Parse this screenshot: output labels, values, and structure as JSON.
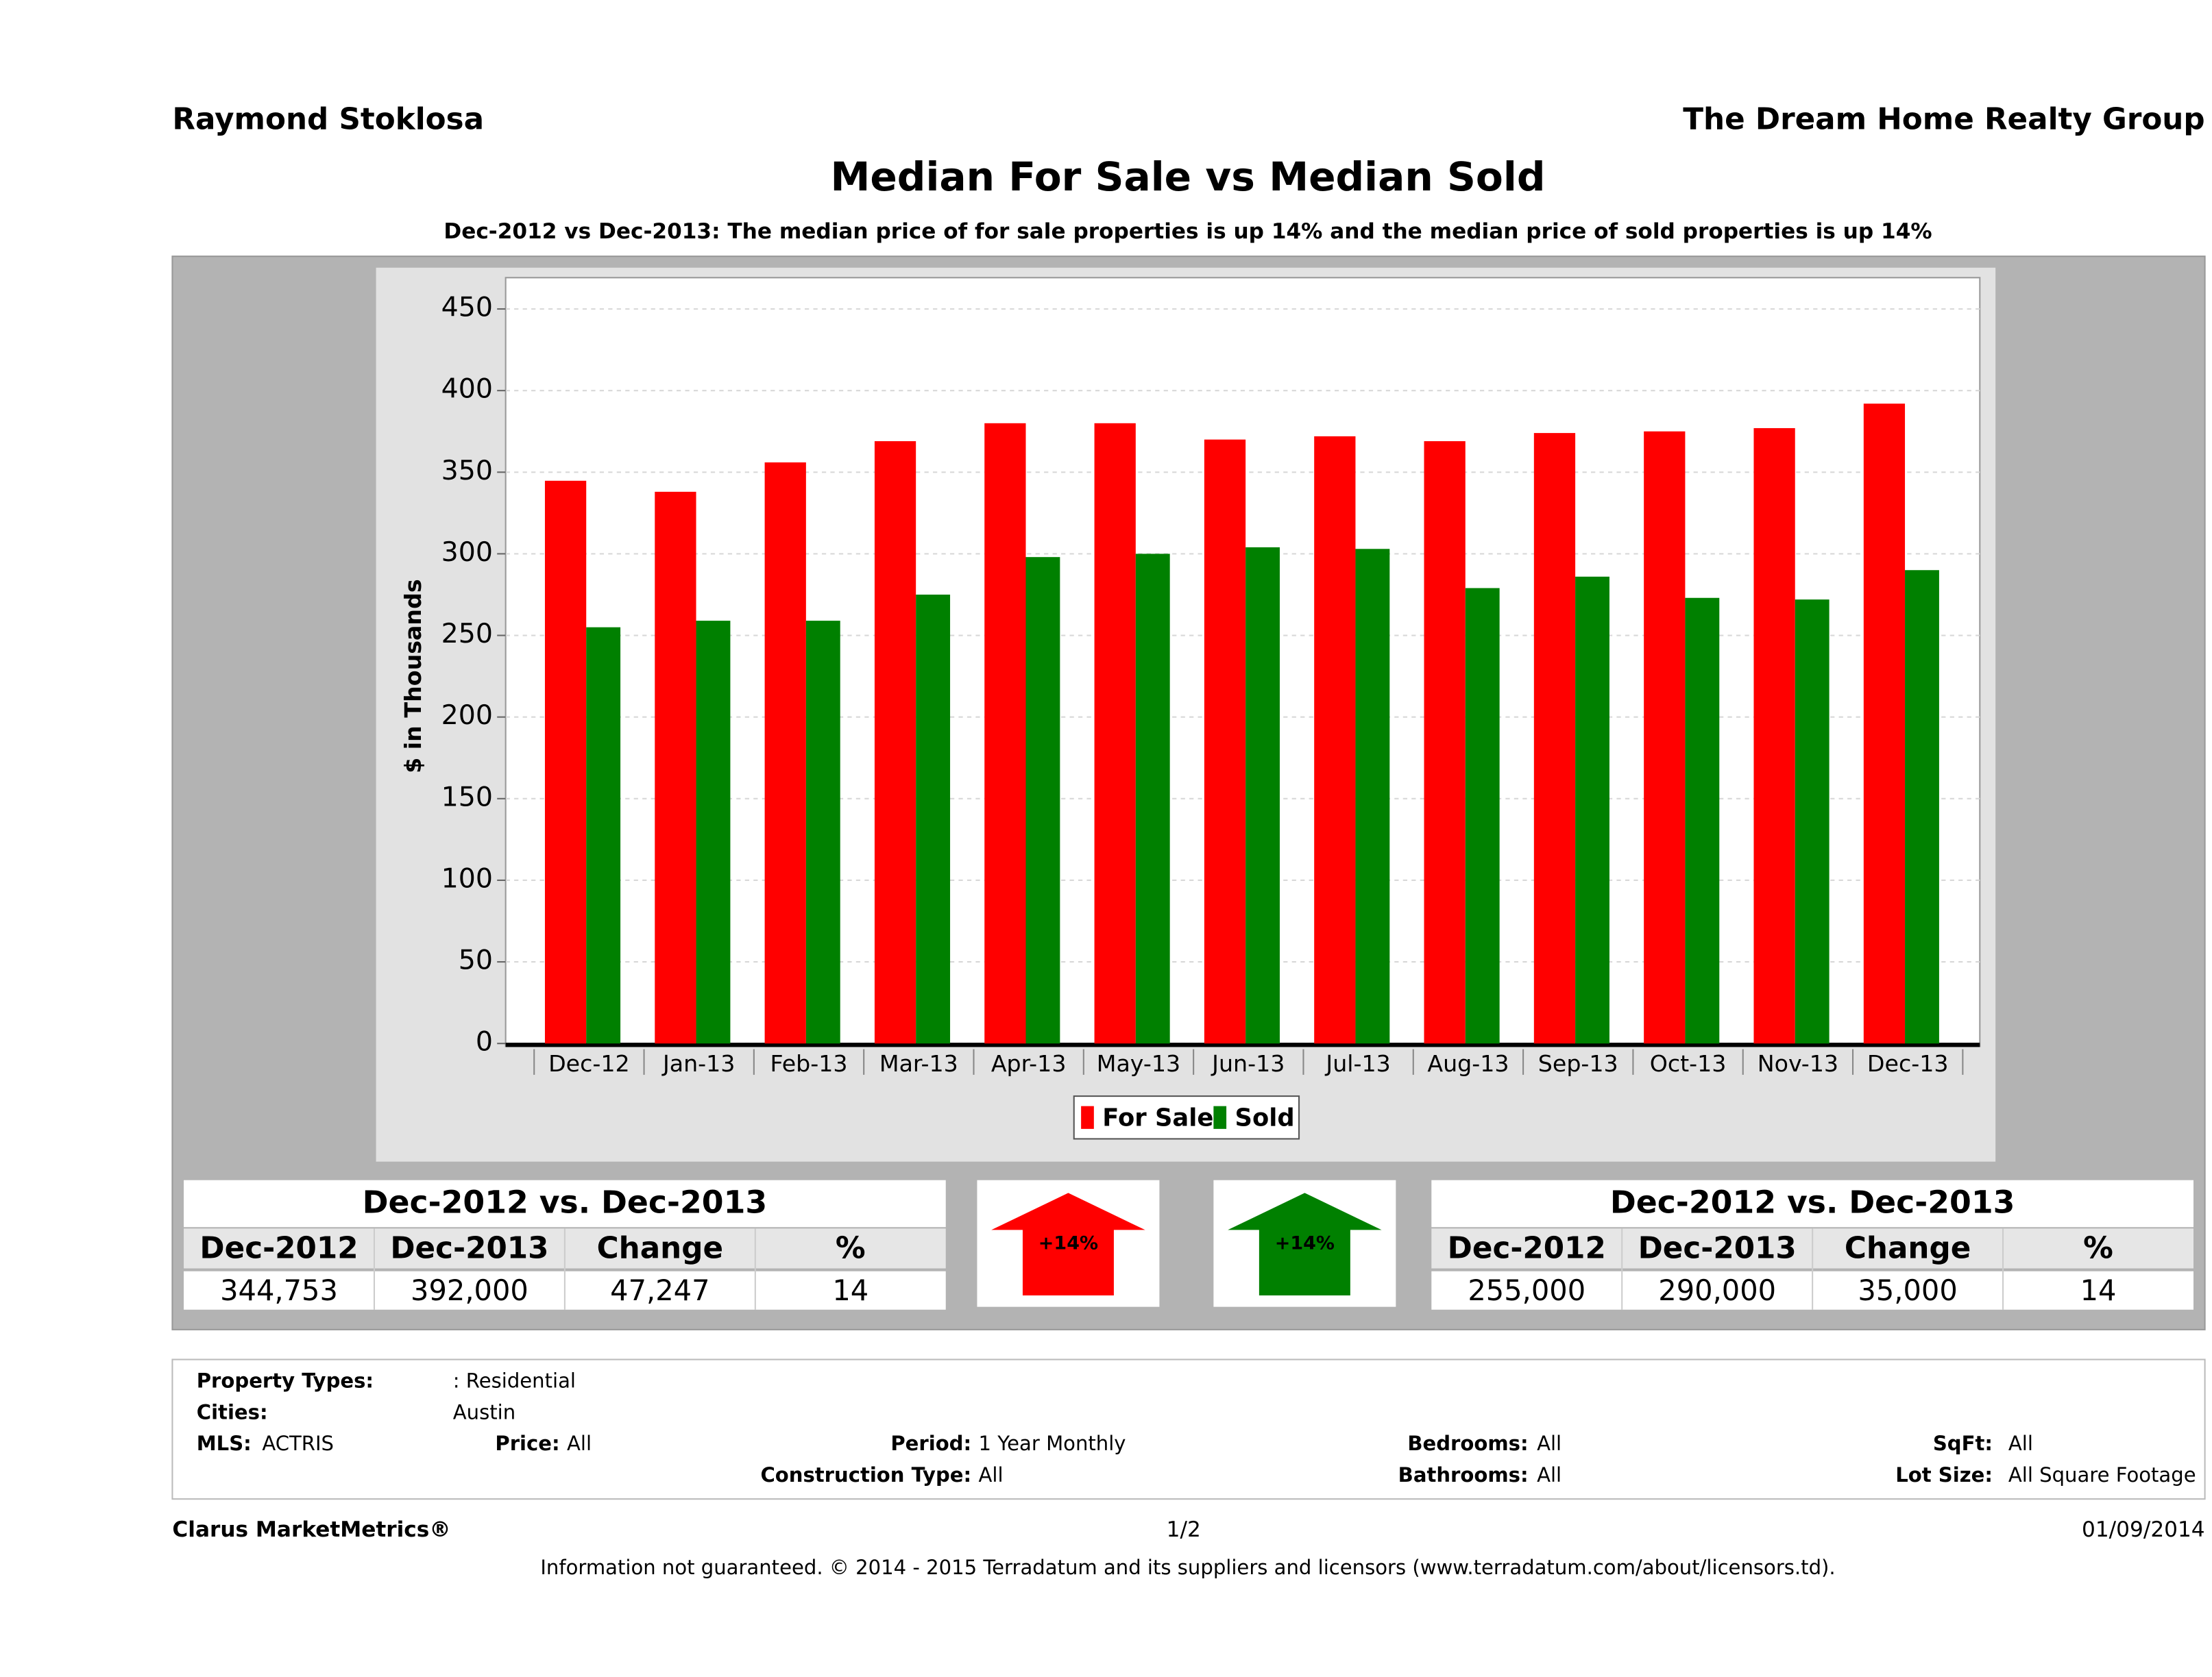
{
  "header": {
    "agent": "Raymond Stoklosa",
    "company": "The Dream Home Realty Group"
  },
  "chart_data": {
    "type": "bar",
    "title": "Median For Sale vs Median Sold",
    "subtitle": "Dec-2012 vs Dec-2013: The median price of for sale properties is up 14% and the median price of sold properties is up 14%",
    "y_label": "$ in Thousands",
    "categories": [
      "Dec-12",
      "Jan-13",
      "Feb-13",
      "Mar-13",
      "Apr-13",
      "May-13",
      "Jun-13",
      "Jul-13",
      "Aug-13",
      "Sep-13",
      "Oct-13",
      "Nov-13",
      "Dec-13"
    ],
    "series": [
      {
        "name": "For Sale",
        "color": "#ff0000",
        "values": [
          344.753,
          338,
          356,
          369,
          380,
          380,
          370,
          372,
          369,
          374,
          375,
          377,
          392
        ]
      },
      {
        "name": "Sold",
        "color": "#008000",
        "values": [
          255,
          259,
          259,
          275,
          298,
          300,
          304,
          303,
          279,
          286,
          273,
          272,
          290
        ]
      }
    ],
    "ylim": [
      0,
      450
    ],
    "yticks": [
      0,
      50,
      100,
      150,
      200,
      250,
      300,
      350,
      400,
      450
    ],
    "grid": true
  },
  "summary": [
    {
      "title": "Dec-2012 vs. Dec-2013",
      "headers": [
        "Dec-2012",
        "Dec-2013",
        "Change",
        "%"
      ],
      "row": [
        "344,753",
        "392,000",
        "47,247",
        "14"
      ],
      "arrow": "+14%",
      "color": "#ff0000"
    },
    {
      "title": "Dec-2012 vs. Dec-2013",
      "headers": [
        "Dec-2012",
        "Dec-2013",
        "Change",
        "%"
      ],
      "row": [
        "255,000",
        "290,000",
        "35,000",
        "14"
      ],
      "arrow": "+14%",
      "color": "#008000"
    }
  ],
  "criteria": [
    {
      "label": "Property Types:",
      "value": ": Residential"
    },
    {
      "label": "Cities:",
      "value": "Austin"
    },
    {
      "label": "MLS:",
      "value": "ACTRIS"
    },
    {
      "label": "Price:",
      "value": "All"
    },
    {
      "label": "Period:",
      "value": "1 Year Monthly"
    },
    {
      "label": "Bedrooms:",
      "value": "All"
    },
    {
      "label": "SqFt:",
      "value": "All"
    },
    {
      "label": "Construction Type:",
      "value": "All"
    },
    {
      "label": "Bathrooms:",
      "value": "All"
    },
    {
      "label": "Lot Size:",
      "value": "All Square Footage"
    }
  ],
  "footer": {
    "brand": "Clarus MarketMetrics®",
    "page": "1/2",
    "date": "01/09/2014",
    "disclaimer": "Information not guaranteed. © 2014 - 2015 Terradatum and its suppliers and licensors (www.terradatum.com/about/licensors.td)."
  }
}
